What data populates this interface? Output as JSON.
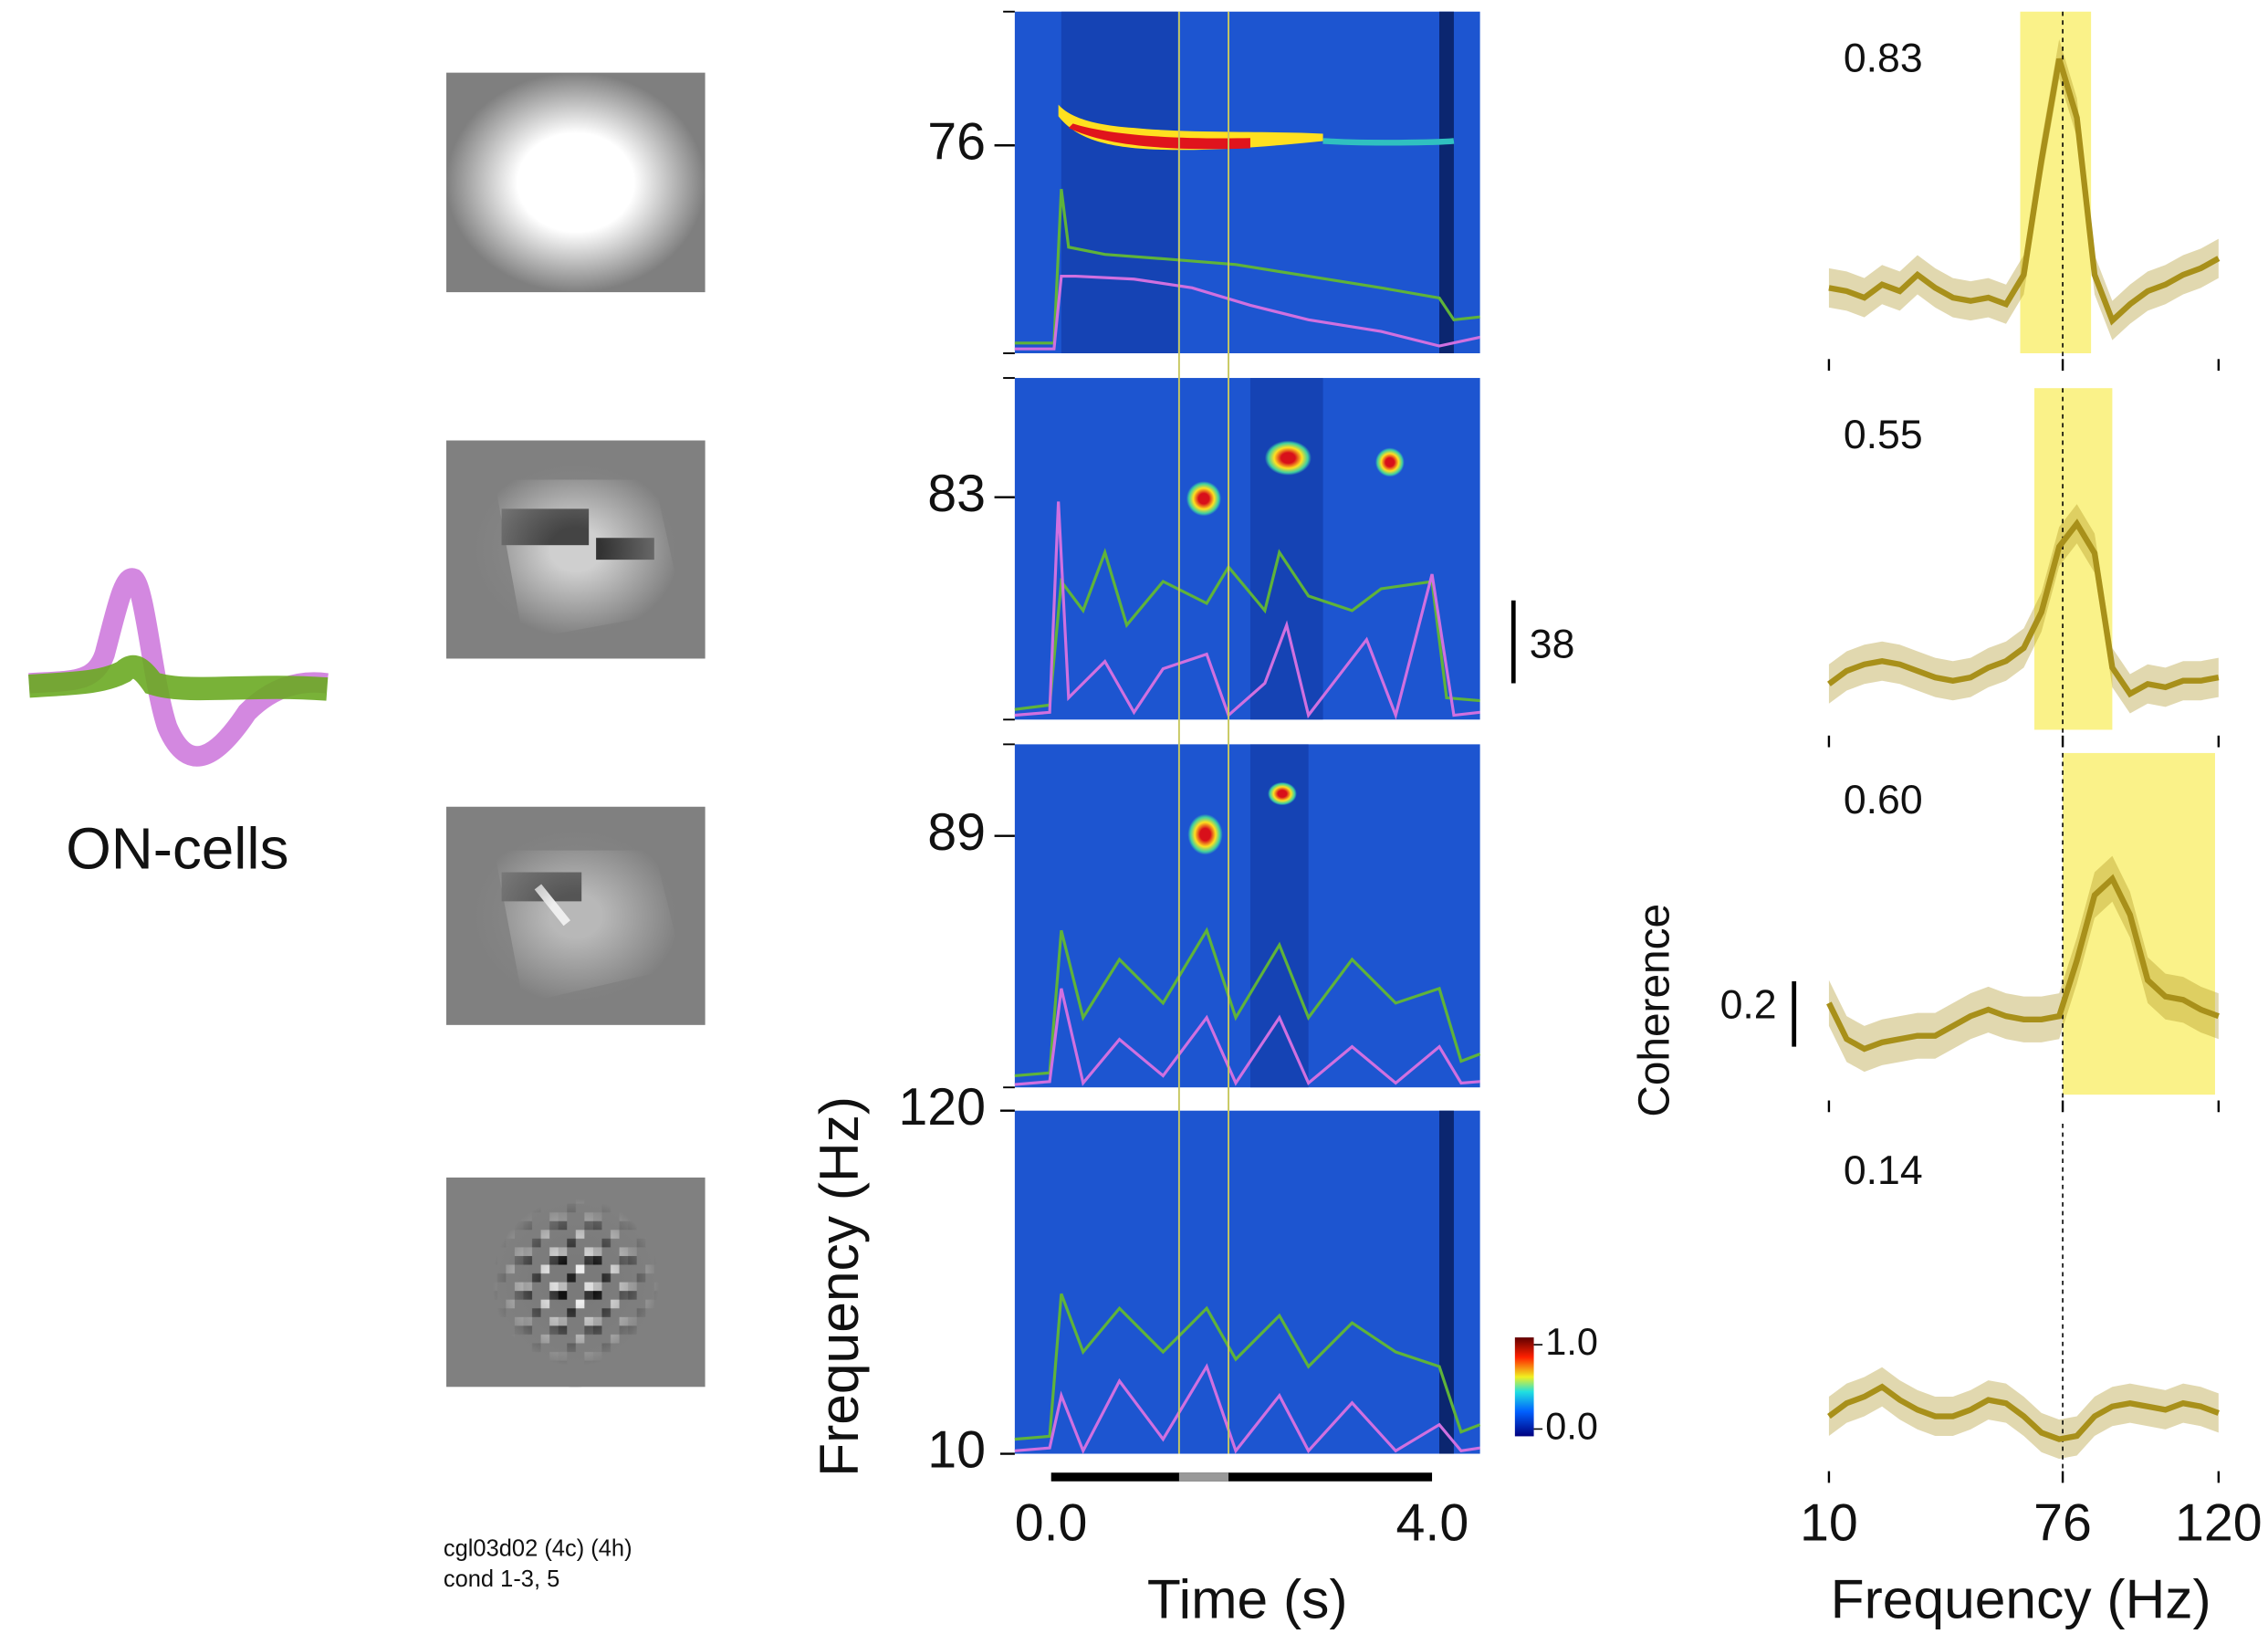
{
  "waveforms": {
    "label": "ON-cells"
  },
  "stimulus_note": [
    "cgl03d02 (4c) (4h)",
    "cond 1-3, 5"
  ],
  "spectrogram": {
    "xlabel": "Time (s)",
    "ylabel": "Frequency (Hz)",
    "xlim": [
      -0.38,
      4.5
    ],
    "xticks": [
      {
        "value": 0,
        "label": "0.0"
      },
      {
        "value": 4,
        "label": "4.0"
      }
    ],
    "ylim": [
      10,
      120
    ],
    "yticks": [
      10,
      120
    ],
    "panel_frequencies": [
      76,
      83,
      89
    ],
    "rate_scale_bar": 38,
    "colorbar": {
      "ticks": [
        {
          "value": 1,
          "label": "1.0"
        },
        {
          "value": 0,
          "label": "0.0"
        }
      ]
    }
  },
  "coherence_axis": {
    "ylabel": "Coherence",
    "scale_bar": 0.2
  },
  "chart_data": [
    {
      "type": "line",
      "annotation": "0.83",
      "color": "#a8901a",
      "xlim": [
        10,
        120
      ],
      "ylim": [
        0,
        1
      ],
      "highlight": [
        64,
        84
      ],
      "reference_x": 76,
      "ci_halfwidth": 0.06,
      "x": [
        10,
        15,
        20,
        25,
        30,
        35,
        40,
        45,
        50,
        55,
        60,
        65,
        70,
        75,
        80,
        85,
        90,
        95,
        100,
        105,
        110,
        115,
        120
      ],
      "values": [
        0.12,
        0.11,
        0.09,
        0.13,
        0.11,
        0.16,
        0.12,
        0.09,
        0.08,
        0.09,
        0.07,
        0.16,
        0.51,
        0.82,
        0.64,
        0.16,
        0.02,
        0.07,
        0.11,
        0.13,
        0.16,
        0.18,
        0.21
      ]
    },
    {
      "type": "line",
      "annotation": "0.55",
      "color": "#a8901a",
      "xlim": [
        10,
        120
      ],
      "ylim": [
        0,
        1
      ],
      "highlight": [
        68,
        90
      ],
      "reference_x": 76,
      "ci_halfwidth": 0.06,
      "x": [
        10,
        15,
        20,
        25,
        30,
        35,
        40,
        45,
        50,
        55,
        60,
        65,
        70,
        75,
        80,
        85,
        90,
        95,
        100,
        105,
        110,
        115,
        120
      ],
      "values": [
        0.06,
        0.1,
        0.12,
        0.13,
        0.12,
        0.1,
        0.08,
        0.07,
        0.08,
        0.11,
        0.13,
        0.17,
        0.28,
        0.48,
        0.55,
        0.46,
        0.11,
        0.03,
        0.06,
        0.05,
        0.07,
        0.07,
        0.08
      ]
    },
    {
      "type": "line",
      "annotation": "0.60",
      "color": "#a8901a",
      "xlim": [
        10,
        120
      ],
      "ylim": [
        0,
        1
      ],
      "highlight": [
        76,
        119
      ],
      "reference_x": 76,
      "ci_halfwidth": 0.07,
      "x": [
        10,
        15,
        20,
        25,
        30,
        35,
        40,
        45,
        50,
        55,
        60,
        65,
        70,
        75,
        80,
        85,
        90,
        95,
        100,
        105,
        110,
        115,
        120
      ],
      "values": [
        0.2,
        0.09,
        0.06,
        0.08,
        0.09,
        0.1,
        0.1,
        0.13,
        0.16,
        0.18,
        0.16,
        0.15,
        0.15,
        0.16,
        0.33,
        0.53,
        0.58,
        0.47,
        0.27,
        0.22,
        0.21,
        0.18,
        0.16
      ]
    },
    {
      "type": "line",
      "annotation": "0.14",
      "color": "#a8901a",
      "xlim": [
        10,
        120
      ],
      "ylim": [
        0,
        1
      ],
      "reference_x": 76,
      "ci_halfwidth": 0.06,
      "xticks": [
        10,
        76,
        120
      ],
      "xlabel": "Frequency (Hz)",
      "x": [
        10,
        15,
        20,
        25,
        30,
        35,
        40,
        45,
        50,
        55,
        60,
        65,
        70,
        75,
        80,
        85,
        90,
        95,
        100,
        105,
        110,
        115,
        120
      ],
      "values": [
        0.07,
        0.11,
        0.13,
        0.16,
        0.12,
        0.09,
        0.07,
        0.07,
        0.09,
        0.12,
        0.11,
        0.07,
        0.02,
        0,
        0.01,
        0.07,
        0.1,
        0.11,
        0.1,
        0.09,
        0.11,
        0.1,
        0.08
      ]
    }
  ]
}
